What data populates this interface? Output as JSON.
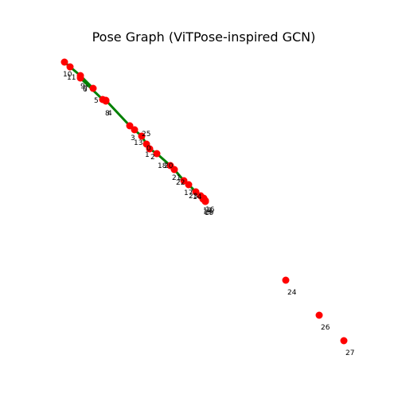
{
  "title": "Pose Graph (ViTPose-inspired GCN)",
  "colors": {
    "edge": "#008000",
    "node": "#ff0000",
    "label": "#000000",
    "background": "#ffffff"
  },
  "graph": {
    "nodes": [
      {
        "id": "0",
        "label": "0"
      },
      {
        "id": "1",
        "label": "1"
      },
      {
        "id": "2",
        "label": "2"
      },
      {
        "id": "3",
        "label": "3"
      },
      {
        "id": "4",
        "label": "4"
      },
      {
        "id": "5",
        "label": "5"
      },
      {
        "id": "6",
        "label": "6"
      },
      {
        "id": "7",
        "label": "7"
      },
      {
        "id": "8",
        "label": "8"
      },
      {
        "id": "9",
        "label": "9"
      },
      {
        "id": "10",
        "label": "10"
      },
      {
        "id": "11",
        "label": "11"
      },
      {
        "id": "12",
        "label": "12"
      },
      {
        "id": "13",
        "label": "13"
      },
      {
        "id": "14",
        "label": "14"
      },
      {
        "id": "15",
        "label": "15"
      },
      {
        "id": "16",
        "label": "16"
      },
      {
        "id": "17",
        "label": "17"
      },
      {
        "id": "18",
        "label": "18"
      },
      {
        "id": "19",
        "label": "19"
      },
      {
        "id": "20",
        "label": "20"
      },
      {
        "id": "21",
        "label": "21"
      },
      {
        "id": "22",
        "label": "22"
      },
      {
        "id": "23",
        "label": "23"
      },
      {
        "id": "24",
        "label": "24"
      },
      {
        "id": "25",
        "label": "25"
      },
      {
        "id": "26",
        "label": "26"
      },
      {
        "id": "27",
        "label": "27"
      }
    ],
    "edges": [
      [
        "10",
        "11"
      ],
      [
        "11",
        "9"
      ],
      [
        "9",
        "7"
      ],
      [
        "7",
        "6"
      ],
      [
        "6",
        "5"
      ],
      [
        "5",
        "8"
      ],
      [
        "8",
        "4"
      ],
      [
        "4",
        "3"
      ],
      [
        "3",
        "13"
      ],
      [
        "13",
        "0"
      ],
      [
        "0",
        "1"
      ],
      [
        "1",
        "2"
      ],
      [
        "2",
        "18"
      ],
      [
        "18",
        "20"
      ],
      [
        "20",
        "21"
      ],
      [
        "21",
        "22"
      ],
      [
        "22",
        "17"
      ],
      [
        "17",
        "23"
      ],
      [
        "23",
        "14"
      ],
      [
        "14",
        "12"
      ],
      [
        "12",
        "16"
      ],
      [
        "16",
        "15"
      ],
      [
        "15",
        "19"
      ]
    ]
  }
}
